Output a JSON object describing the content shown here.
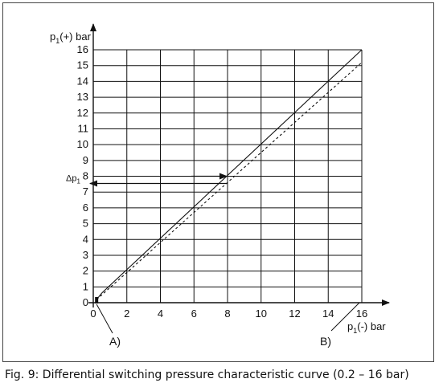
{
  "caption": "Fig. 9: Differential switching pressure characteristic curve (0.2 – 16 bar)",
  "chart_data": {
    "type": "line",
    "title": "",
    "xlabel": "p1(-) bar",
    "ylabel": "p1(+) bar",
    "xlim": [
      0,
      16
    ],
    "ylim": [
      0,
      16
    ],
    "x_ticks": [
      0,
      2,
      4,
      6,
      8,
      10,
      12,
      14,
      16
    ],
    "y_ticks": [
      0,
      1,
      2,
      3,
      4,
      5,
      6,
      7,
      8,
      9,
      10,
      11,
      12,
      13,
      14,
      15,
      16
    ],
    "grid": true,
    "series": [
      {
        "style": "solid",
        "x": [
          0.2,
          0.5,
          16
        ],
        "y": [
          0.2,
          0.6,
          16
        ]
      },
      {
        "style": "dashed",
        "x": [
          0.2,
          16
        ],
        "y": [
          0.2,
          15.2
        ]
      }
    ],
    "annotations": {
      "delta_label": "Δp",
      "delta_sub": "1",
      "delta_at": {
        "x": 8,
        "y": 8
      },
      "marker_a": "A)",
      "marker_a_at": 0.2,
      "marker_b": "B)"
    },
    "colors": {
      "line": "#111111",
      "grid": "#111111"
    }
  }
}
